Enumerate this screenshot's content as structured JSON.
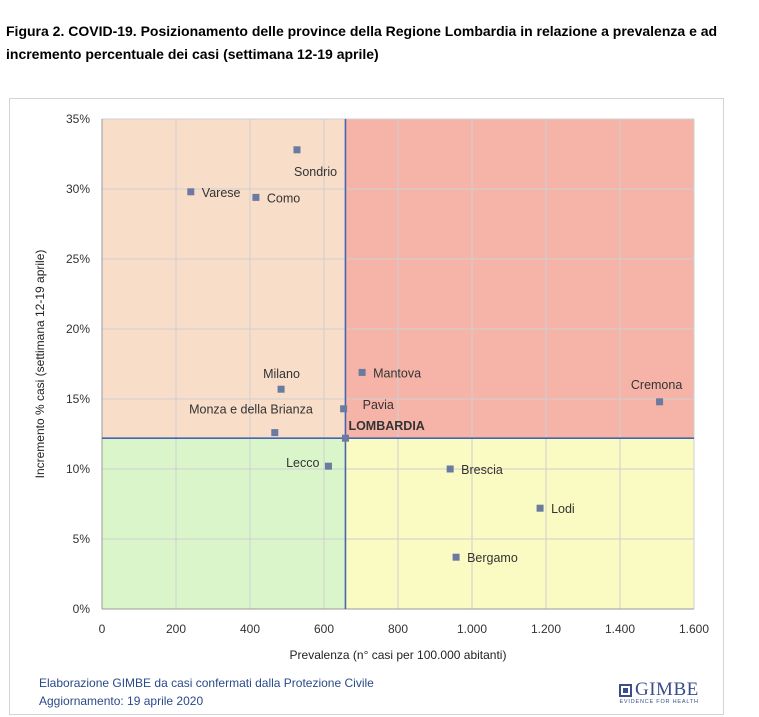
{
  "figure": {
    "title": "Figura 2. COVID-19. Posizionamento delle province della Regione Lombardia in relazione a prevalenza e ad incremento percentuale dei casi (settimana 12-19 aprile)"
  },
  "chart_data": {
    "type": "scatter",
    "title": "",
    "xlabel": "Prevalenza  (n° casi per 100.000 abitanti)",
    "ylabel": "Incremento % casi (settimana 12-19 aprile)",
    "xlim": [
      0,
      1600
    ],
    "ylim": [
      0,
      35
    ],
    "x_ticks": [
      0,
      200,
      400,
      600,
      800,
      1000,
      1200,
      1400,
      1600
    ],
    "x_tick_labels": [
      "0",
      "200",
      "400",
      "600",
      "800",
      "1.000",
      "1.200",
      "1.400",
      "1.600"
    ],
    "y_ticks": [
      0,
      5,
      10,
      15,
      20,
      25,
      30,
      35
    ],
    "y_tick_labels": [
      "0%",
      "5%",
      "10%",
      "15%",
      "20%",
      "25%",
      "30%",
      "35%"
    ],
    "grid": true,
    "legend": "none",
    "reference": {
      "name": "LOMBARDIA",
      "x": 658,
      "y": 12.2
    },
    "quadrant_colors": {
      "top_left": "#f8ddc9",
      "top_right": "#f6b4a8",
      "bottom_left": "#dbf5cb",
      "bottom_right": "#fafac3"
    },
    "marker_color": "#6a7aa0",
    "line_color": "#4466b0",
    "points": [
      {
        "label": "Sondrio",
        "x": 527,
        "y": 32.8
      },
      {
        "label": "Varese",
        "x": 240,
        "y": 29.8
      },
      {
        "label": "Como",
        "x": 416,
        "y": 29.4
      },
      {
        "label": "Milano",
        "x": 484,
        "y": 15.7
      },
      {
        "label": "Monza e della Brianza",
        "x": 467,
        "y": 12.6
      },
      {
        "label": "Mantova",
        "x": 703,
        "y": 16.9
      },
      {
        "label": "Pavia",
        "x": 653,
        "y": 14.3
      },
      {
        "label": "Cremona",
        "x": 1507,
        "y": 14.8
      },
      {
        "label": "LOMBARDIA",
        "x": 658,
        "y": 12.2
      },
      {
        "label": "Lecco",
        "x": 612,
        "y": 10.2
      },
      {
        "label": "Brescia",
        "x": 941,
        "y": 10.0
      },
      {
        "label": "Lodi",
        "x": 1184,
        "y": 7.2
      },
      {
        "label": "Bergamo",
        "x": 957,
        "y": 3.7
      }
    ]
  },
  "footer": {
    "line1": "Elaborazione GIMBE da casi confermati dalla Protezione Civile",
    "line2": "Aggiornamento: 19 aprile 2020"
  },
  "logo": {
    "name": "GIMBE",
    "tagline": "EVIDENCE FOR HEALTH"
  }
}
